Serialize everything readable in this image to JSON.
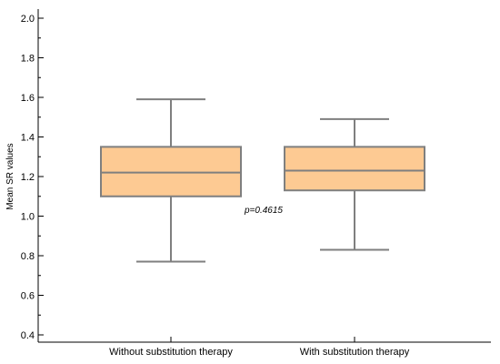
{
  "chart_data": {
    "type": "box",
    "ylabel": "Mean SR values",
    "xlabel": "",
    "ylim": [
      0.4,
      2.0
    ],
    "yticks": [
      "0.4",
      "0.6",
      "0.8",
      "1.0",
      "1.2",
      "1.4",
      "1.6",
      "1.8",
      "2.0"
    ],
    "grid": false,
    "categories": [
      "Without substitution therapy",
      "With substitution therapy"
    ],
    "boxes": [
      {
        "category": "Without substitution therapy",
        "min": 0.77,
        "q1": 1.1,
        "median": 1.22,
        "q3": 1.35,
        "max": 1.59
      },
      {
        "category": "With substitution therapy",
        "min": 0.83,
        "q1": 1.13,
        "median": 1.23,
        "q3": 1.35,
        "max": 1.49
      }
    ],
    "annotation": "p=0.4615",
    "colors": {
      "box_fill": "#fdca93",
      "box_stroke": "#7f7f7f",
      "axis": "#000000"
    }
  }
}
